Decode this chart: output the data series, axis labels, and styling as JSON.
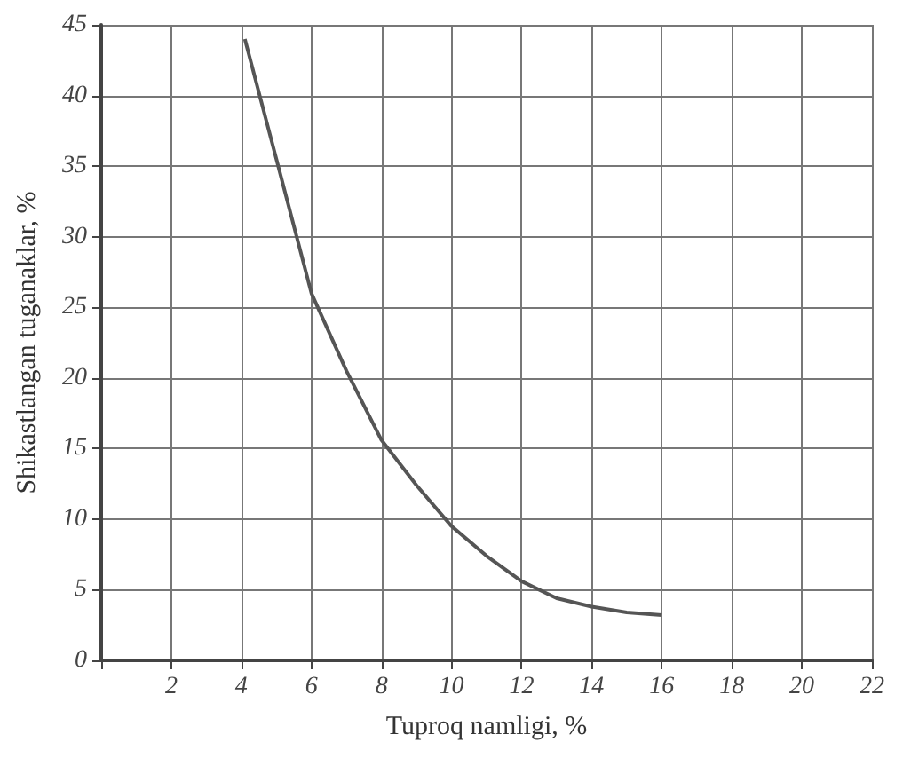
{
  "chart_data": {
    "type": "line",
    "xlabel": "Tuproq namligi, %",
    "ylabel": "Shikastlangan tuganaklar, %",
    "x": [
      4.1,
      5,
      6,
      7,
      8,
      9,
      10,
      11,
      12,
      13,
      14,
      15,
      16
    ],
    "series": [
      {
        "color": "#555555",
        "values": [
          44,
          35.5,
          26,
          20.5,
          15.6,
          12.4,
          9.5,
          7.4,
          5.6,
          4.4,
          3.8,
          3.4,
          3.2
        ]
      }
    ],
    "xlim": [
      0,
      22
    ],
    "xticks": [
      {
        "value": 0,
        "label": null
      },
      2,
      4,
      6,
      8,
      10,
      12,
      14,
      16,
      18,
      20,
      22
    ],
    "ylim": [
      0,
      45
    ],
    "yticks": [
      0,
      5,
      10,
      15,
      20,
      25,
      30,
      35,
      40,
      45
    ],
    "grid": true,
    "marker": "none",
    "line_style": "solid"
  }
}
